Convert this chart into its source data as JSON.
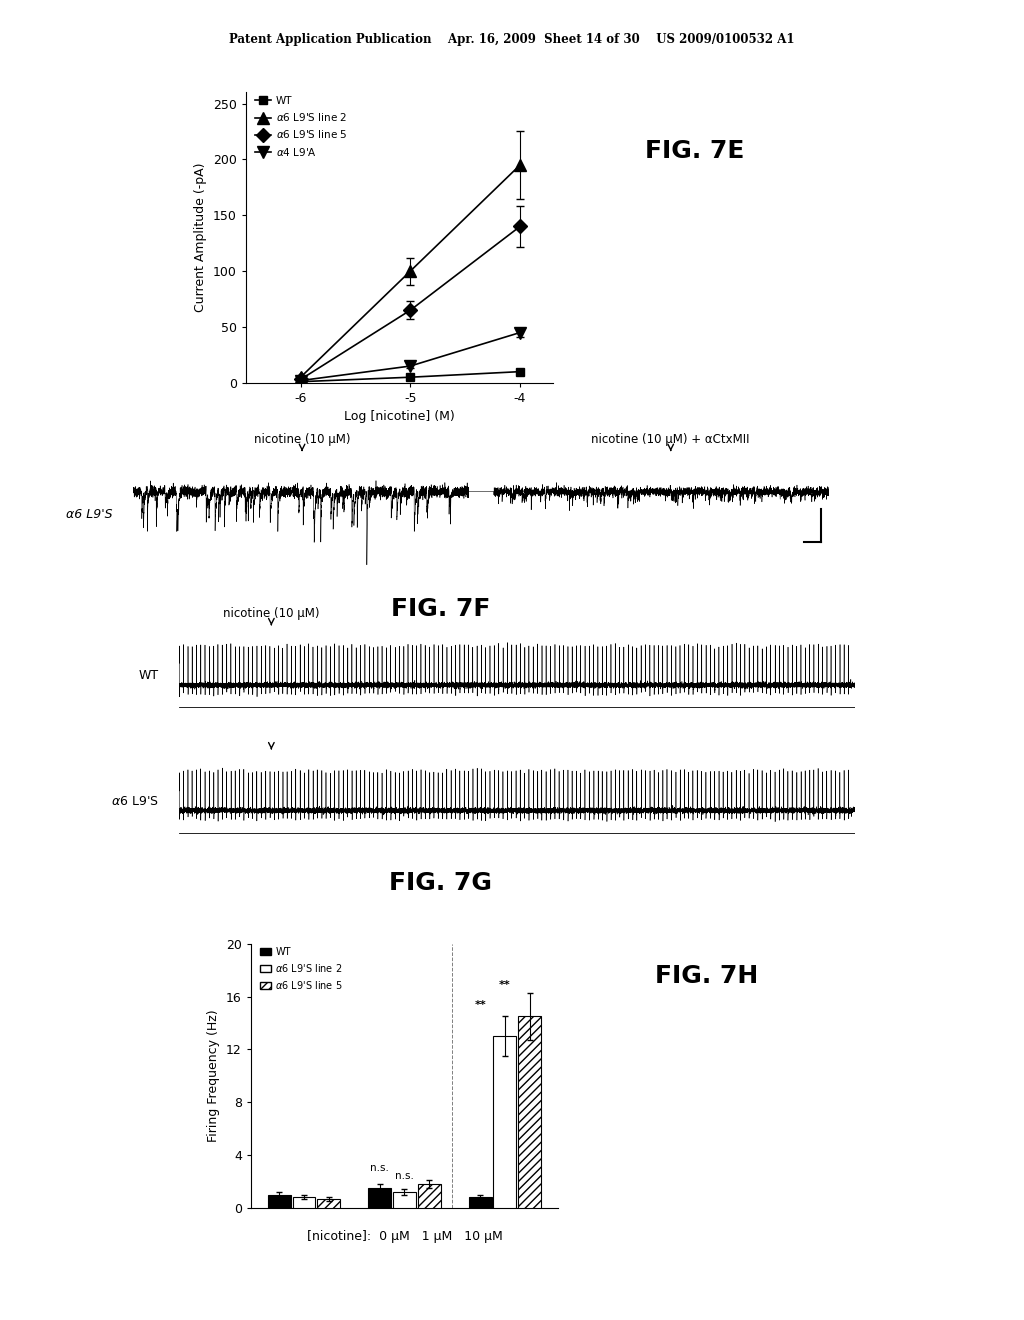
{
  "header_text": "Patent Application Publication    Apr. 16, 2009  Sheet 14 of 30    US 2009/0100532 A1",
  "fig7e_label": "FIG. 7E",
  "fig7f_label": "FIG. 7F",
  "fig7g_label": "FIG. 7G",
  "fig7h_label": "FIG. 7H",
  "fig7e": {
    "xlabel": "Log [nicotine] (M)",
    "ylabel": "Current Amplitude (-pA)",
    "xlim": [
      -6.5,
      -3.7
    ],
    "ylim": [
      0,
      260
    ],
    "yticks": [
      0,
      50,
      100,
      150,
      200,
      250
    ],
    "xticks": [
      -6,
      -5,
      -4
    ],
    "xticklabels": [
      "-6",
      "-5",
      "-4"
    ],
    "series": [
      {
        "label": "WT",
        "x": [
          -6,
          -5,
          -4
        ],
        "y": [
          1,
          5,
          10
        ],
        "yerr": [
          0.5,
          1,
          2
        ],
        "marker": "s",
        "marker_size": 6,
        "color": "#000000",
        "linestyle": "-"
      },
      {
        "label": "α6 L9'S line 2",
        "x": [
          -6,
          -5,
          -4
        ],
        "y": [
          5,
          100,
          195
        ],
        "yerr": [
          1,
          12,
          30
        ],
        "marker": "^",
        "marker_size": 8,
        "color": "#000000",
        "linestyle": "-"
      },
      {
        "label": "α6 L9'S line 5",
        "x": [
          -6,
          -5,
          -4
        ],
        "y": [
          3,
          65,
          140
        ],
        "yerr": [
          0.5,
          8,
          18
        ],
        "marker": "D",
        "marker_size": 7,
        "color": "#000000",
        "linestyle": "-"
      },
      {
        "label": "α4 L9'A",
        "x": [
          -6,
          -5,
          -4
        ],
        "y": [
          2,
          15,
          45
        ],
        "yerr": [
          0.5,
          2,
          4
        ],
        "marker": "v",
        "marker_size": 8,
        "color": "#000000",
        "linestyle": "-"
      }
    ]
  },
  "fig7f": {
    "label_left": "α6 L9'S",
    "annotation1": "nicotine (10 μM)",
    "annotation2": "nicotine (10 μM) + αCtxMII"
  },
  "fig7g": {
    "label_wt": "WT",
    "label_a6": "α6 L9'S",
    "annotation1": "nicotine (10 μM)"
  },
  "fig7h": {
    "xlabel": "[nicotine]:  0 μM   1 μM   10 μM",
    "ylabel": "Firing Frequency (Hz)",
    "ylim": [
      0,
      20
    ],
    "yticks": [
      0,
      4,
      8,
      12,
      16,
      20
    ],
    "series": [
      {
        "label": "WT",
        "values": [
          1.0,
          1.5,
          0.8
        ],
        "errors": [
          0.2,
          0.3,
          0.2
        ],
        "color": "#000000",
        "hatch": ""
      },
      {
        "label": "α6 L9'S line 2",
        "values": [
          0.8,
          1.2,
          13.0
        ],
        "errors": [
          0.15,
          0.25,
          1.5
        ],
        "color": "#ffffff",
        "edgecolor": "#000000",
        "hatch": ""
      },
      {
        "label": "α6 L9'S line 5",
        "values": [
          0.7,
          1.8,
          14.5
        ],
        "errors": [
          0.15,
          0.3,
          1.8
        ],
        "color": "#ffffff",
        "edgecolor": "#000000",
        "hatch": "////"
      }
    ]
  },
  "background_color": "#ffffff",
  "text_color": "#000000"
}
